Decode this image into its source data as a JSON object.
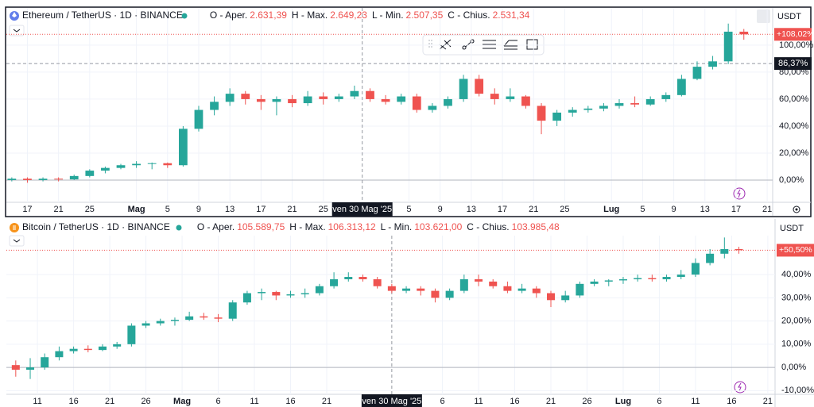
{
  "chart_data": [
    {
      "type": "candlestick",
      "title": "Ethereum / TetherUS · 1D · BINANCE",
      "header": [
        [
          "O - Aper.",
          "2.631,39"
        ],
        [
          "H - Max.",
          "2.649,23"
        ],
        [
          "L - Min.",
          "2.507,35"
        ],
        [
          "C - Chius.",
          "2.531,34"
        ]
      ],
      "currency": "USDT",
      "up_color": "#26a69a",
      "down_color": "#ef5350",
      "grid": true,
      "xlim": [
        -0.7,
        97.7
      ],
      "xticks": [
        {
          "value": 2,
          "label": "17"
        },
        {
          "value": 6,
          "label": "21"
        },
        {
          "value": 10,
          "label": "25"
        },
        {
          "value": 16,
          "label": "Mag"
        },
        {
          "value": 20,
          "label": "5"
        },
        {
          "value": 24,
          "label": "9"
        },
        {
          "value": 28,
          "label": "13"
        },
        {
          "value": 32,
          "label": "17"
        },
        {
          "value": 36,
          "label": "21"
        },
        {
          "value": 40,
          "label": "25"
        },
        {
          "value": 51,
          "label": "5"
        },
        {
          "value": 55,
          "label": "9"
        },
        {
          "value": 59,
          "label": "13"
        },
        {
          "value": 63,
          "label": "17"
        },
        {
          "value": 67,
          "label": "21"
        },
        {
          "value": 71,
          "label": "25"
        },
        {
          "value": 77,
          "label": "Lug"
        },
        {
          "value": 81,
          "label": "5"
        },
        {
          "value": 85,
          "label": "9"
        },
        {
          "value": 89,
          "label": "13"
        },
        {
          "value": 93,
          "label": "17"
        },
        {
          "value": 97,
          "label": "21"
        }
      ],
      "ylim": [
        -16.5,
        127.6
      ],
      "yticks": [
        {
          "value": 0,
          "label": "0,00%"
        },
        {
          "value": 20,
          "label": "20,00%"
        },
        {
          "value": 40,
          "label": "40,00%"
        },
        {
          "value": 60,
          "label": "60,00%"
        },
        {
          "value": 80,
          "label": "80,00%"
        },
        {
          "value": 100,
          "label": "100,00%"
        }
      ],
      "last": {
        "value": 108.02,
        "label": "+108,02%"
      },
      "crosshair": {
        "x": 45,
        "x_label": "ven 30 Mag '25",
        "y": 86.37,
        "y_label": "86,37%"
      },
      "x": [
        0,
        2,
        4,
        6,
        8,
        10,
        12,
        14,
        16,
        18,
        20,
        22,
        24,
        26,
        28,
        30,
        32,
        34,
        36,
        38,
        40,
        42,
        44,
        46,
        48,
        50,
        52,
        54,
        56,
        58,
        60,
        62,
        64,
        66,
        68,
        70,
        72,
        74,
        76,
        78,
        80,
        82,
        84,
        86,
        88,
        90,
        92,
        94
      ],
      "candles": [
        [
          0,
          2,
          -1,
          1
        ],
        [
          1,
          2,
          -2,
          0
        ],
        [
          0,
          2,
          -1,
          1
        ],
        [
          1,
          2,
          -1,
          0.5
        ],
        [
          0.5,
          4,
          0,
          3
        ],
        [
          3,
          8,
          2,
          7
        ],
        [
          7,
          10,
          5,
          9
        ],
        [
          9,
          12,
          8,
          11
        ],
        [
          11,
          14,
          9,
          12
        ],
        [
          12,
          13,
          8,
          12.5
        ],
        [
          12.5,
          13,
          9,
          11
        ],
        [
          11,
          40,
          10,
          38
        ],
        [
          38,
          55,
          36,
          52
        ],
        [
          52,
          62,
          48,
          58
        ],
        [
          58,
          68,
          55,
          64
        ],
        [
          64,
          66,
          56,
          60
        ],
        [
          60,
          63,
          52,
          58
        ],
        [
          58,
          62,
          48,
          60
        ],
        [
          60,
          63,
          54,
          57
        ],
        [
          57,
          66,
          55,
          62
        ],
        [
          62,
          65,
          56,
          60
        ],
        [
          60,
          64,
          58,
          62
        ],
        [
          62,
          70,
          60,
          66
        ],
        [
          66,
          68,
          58,
          60
        ],
        [
          60,
          63,
          56,
          58
        ],
        [
          58,
          64,
          56,
          62
        ],
        [
          62,
          64,
          50,
          52
        ],
        [
          52,
          57,
          50,
          55
        ],
        [
          55,
          62,
          53,
          60
        ],
        [
          60,
          78,
          58,
          75
        ],
        [
          75,
          78,
          62,
          64
        ],
        [
          64,
          68,
          56,
          60
        ],
        [
          60,
          68,
          58,
          62
        ],
        [
          62,
          63,
          53,
          55
        ],
        [
          55,
          57,
          34,
          44
        ],
        [
          44,
          52,
          40,
          50
        ],
        [
          50,
          54,
          47,
          52
        ],
        [
          52,
          55,
          50,
          53
        ],
        [
          53,
          57,
          51,
          55
        ],
        [
          55,
          60,
          53,
          57
        ],
        [
          57,
          62,
          54,
          56
        ],
        [
          56,
          62,
          55,
          60
        ],
        [
          60,
          65,
          58,
          63
        ],
        [
          63,
          78,
          62,
          75
        ],
        [
          75,
          88,
          74,
          84
        ],
        [
          84,
          92,
          82,
          88
        ],
        [
          88,
          116,
          86,
          110
        ],
        [
          110,
          112,
          104,
          108.02
        ]
      ]
    },
    {
      "type": "candlestick",
      "title": "Bitcoin / TetherUS · 1D · BINANCE",
      "header": [
        [
          "O - Aper.",
          "105.589,75"
        ],
        [
          "H - Max.",
          "106.313,12"
        ],
        [
          "L - Min.",
          "103.621,00"
        ],
        [
          "C - Chius.",
          "103.985,48"
        ]
      ],
      "currency": "USDT",
      "up_color": "#26a69a",
      "down_color": "#ef5350",
      "grid": true,
      "xlim": [
        -4.3,
        102
      ],
      "xticks": [
        {
          "value": 0,
          "label": "11"
        },
        {
          "value": 5,
          "label": "16"
        },
        {
          "value": 10,
          "label": "21"
        },
        {
          "value": 15,
          "label": "26"
        },
        {
          "value": 20,
          "label": "Mag"
        },
        {
          "value": 25,
          "label": "6"
        },
        {
          "value": 30,
          "label": "11"
        },
        {
          "value": 35,
          "label": "16"
        },
        {
          "value": 40,
          "label": "21"
        },
        {
          "value": 56,
          "label": "6"
        },
        {
          "value": 61,
          "label": "11"
        },
        {
          "value": 66,
          "label": "16"
        },
        {
          "value": 71,
          "label": "21"
        },
        {
          "value": 76,
          "label": "26"
        },
        {
          "value": 81,
          "label": "Lug"
        },
        {
          "value": 86,
          "label": "6"
        },
        {
          "value": 91,
          "label": "11"
        },
        {
          "value": 96,
          "label": "16"
        },
        {
          "value": 101,
          "label": "21"
        }
      ],
      "ylim": [
        -11.6,
        56.8
      ],
      "yticks": [
        {
          "value": -10,
          "label": "-10,00%"
        },
        {
          "value": 0,
          "label": "0,00%"
        },
        {
          "value": 10,
          "label": "10,00%"
        },
        {
          "value": 20,
          "label": "20,00%"
        },
        {
          "value": 30,
          "label": "30,00%"
        },
        {
          "value": 40,
          "label": "40,00%"
        }
      ],
      "last": {
        "value": 50.5,
        "label": "+50,50%"
      },
      "crosshair": {
        "x": 49,
        "x_label": "ven 30 Mag '25"
      },
      "x": [
        -3,
        -1,
        1,
        3,
        5,
        7,
        9,
        11,
        13,
        15,
        17,
        19,
        21,
        23,
        25,
        27,
        29,
        31,
        33,
        35,
        37,
        39,
        41,
        43,
        45,
        47,
        49,
        51,
        53,
        55,
        57,
        59,
        61,
        63,
        65,
        67,
        69,
        71,
        73,
        75,
        77,
        79,
        81,
        83,
        85,
        87,
        89,
        91,
        93,
        95,
        97
      ],
      "candles": [
        [
          1,
          3,
          -4,
          -1
        ],
        [
          -1,
          4,
          -5,
          0
        ],
        [
          0,
          6,
          -1,
          4.4
        ],
        [
          4.4,
          9,
          3,
          7
        ],
        [
          7,
          9,
          6,
          8
        ],
        [
          8,
          9.5,
          6.5,
          7.5
        ],
        [
          7.5,
          10,
          7,
          9
        ],
        [
          9,
          11,
          8,
          10
        ],
        [
          10,
          19,
          9,
          18
        ],
        [
          18,
          20,
          17,
          19
        ],
        [
          19,
          21,
          18,
          20
        ],
        [
          20,
          21.5,
          18,
          20.5
        ],
        [
          20.5,
          24,
          20,
          22
        ],
        [
          22,
          23.5,
          20.5,
          21.5
        ],
        [
          21.5,
          23,
          19.5,
          21
        ],
        [
          21,
          29,
          20,
          28
        ],
        [
          28,
          33,
          27,
          32
        ],
        [
          32,
          34,
          29,
          32.5
        ],
        [
          32.5,
          33,
          29,
          31
        ],
        [
          31,
          33,
          30,
          31.5
        ],
        [
          31.5,
          34,
          30,
          32
        ],
        [
          32,
          36,
          31,
          35
        ],
        [
          35,
          41,
          34,
          38
        ],
        [
          38,
          41,
          37,
          39
        ],
        [
          39,
          40,
          37,
          38
        ],
        [
          38,
          39,
          34,
          35
        ],
        [
          35,
          36,
          32,
          33
        ],
        [
          33,
          35,
          32,
          34
        ],
        [
          34,
          35,
          31,
          33
        ],
        [
          33,
          34,
          28,
          30
        ],
        [
          30,
          34,
          29,
          33
        ],
        [
          33,
          40,
          32,
          38
        ],
        [
          38,
          40,
          35,
          37
        ],
        [
          37,
          38,
          34,
          35
        ],
        [
          35,
          37,
          32,
          33
        ],
        [
          33,
          36,
          32,
          34
        ],
        [
          34,
          35,
          30,
          32
        ],
        [
          32,
          33,
          26,
          29
        ],
        [
          29,
          33,
          28,
          31
        ],
        [
          31,
          37,
          30,
          36
        ],
        [
          36,
          38,
          35,
          37
        ],
        [
          37,
          38,
          35,
          37.5
        ],
        [
          37.5,
          39,
          36,
          38
        ],
        [
          38,
          40,
          37,
          38.5
        ],
        [
          38.5,
          40,
          37,
          38
        ],
        [
          38,
          40,
          37,
          39
        ],
        [
          39,
          42,
          38,
          40
        ],
        [
          40,
          47,
          39,
          45
        ],
        [
          45,
          51,
          44,
          49
        ],
        [
          49,
          56,
          47,
          51
        ],
        [
          51,
          52,
          49,
          50.5
        ]
      ]
    }
  ]
}
